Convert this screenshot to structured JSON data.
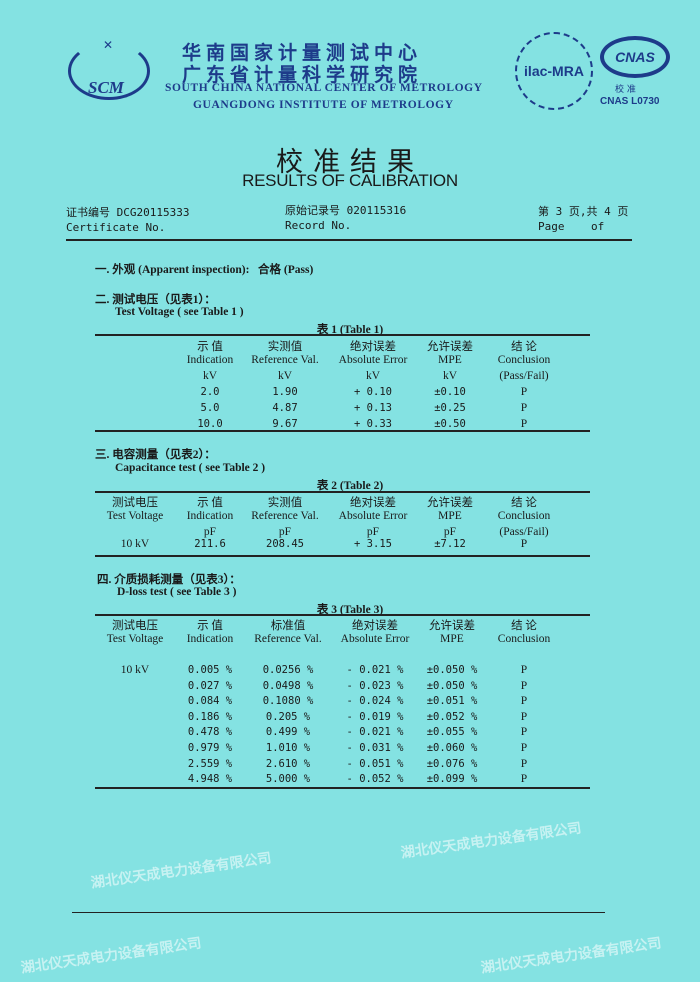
{
  "header": {
    "logo_scm": "SCM",
    "org_cn_1": "华南国家计量测试中心",
    "org_cn_2": "广东省计量科学研究院",
    "org_en_1": "SOUTH CHINA NATIONAL CENTER OF METROLOGY",
    "org_en_2": "GUANGDONG INSTITUTE OF METROLOGY",
    "ilac_logo": "ilac-MRA",
    "cnas_logo": "CNAS",
    "cnas_sub": "校 准",
    "cnas_no": "CNAS L0730"
  },
  "title": {
    "cn": "校准结果",
    "en": "RESULTS OF CALIBRATION"
  },
  "meta": {
    "cert_label_cn": "证书编号",
    "cert_no": "DCG20115333",
    "cert_label_en": "Certificate No.",
    "record_label_cn": "原始记录号",
    "record_no": "020115316",
    "record_label_en": "Record No.",
    "page_cn": "第 3 页,共 4 页",
    "page_en": "Page    of"
  },
  "section1": {
    "label": "一. 外观 (Apparent inspection):",
    "result": "合格 (Pass)"
  },
  "section2": {
    "title_cn": "二. 测试电压（见表1）：",
    "title_en": "Test Voltage ( see Table 1 )",
    "table_title": "表 1 (Table 1)",
    "headers": [
      [
        "示 值",
        "Indication",
        "kV"
      ],
      [
        "实测值",
        "Reference Val.",
        "kV"
      ],
      [
        "绝对误差",
        "Absolute Error",
        "kV"
      ],
      [
        "允许误差",
        "MPE",
        "kV"
      ],
      [
        "结 论",
        "Conclusion",
        "(Pass/Fail)"
      ]
    ],
    "rows": [
      [
        "2.0",
        "1.90",
        "+ 0.10",
        "±0.10",
        "P"
      ],
      [
        "5.0",
        "4.87",
        "+ 0.13",
        "±0.25",
        "P"
      ],
      [
        "10.0",
        "9.67",
        "+ 0.33",
        "±0.50",
        "P"
      ]
    ]
  },
  "section3": {
    "title_cn": "三. 电容测量（见表2）：",
    "title_en": "Capacitance test ( see Table 2 )",
    "table_title": "表 2 (Table 2)",
    "headers": [
      [
        "测试电压",
        "Test Voltage",
        ""
      ],
      [
        "示 值",
        "Indication",
        "pF"
      ],
      [
        "实测值",
        "Reference Val.",
        "pF"
      ],
      [
        "绝对误差",
        "Absolute Error",
        "pF"
      ],
      [
        "允许误差",
        "MPE",
        "pF"
      ],
      [
        "结 论",
        "Conclusion",
        "(Pass/Fail)"
      ]
    ],
    "rows": [
      [
        "10 kV",
        "211.6",
        "208.45",
        "+ 3.15",
        "±7.12",
        "P"
      ]
    ]
  },
  "section4": {
    "title_cn": "四. 介质损耗测量（见表3）：",
    "title_en": "D-loss test  ( see Table 3 )",
    "table_title": "表 3 (Table 3)",
    "headers": [
      [
        "测试电压",
        "Test Voltage"
      ],
      [
        "示 值",
        "Indication"
      ],
      [
        "标准值",
        "Reference Val."
      ],
      [
        "绝对误差",
        "Absolute Error"
      ],
      [
        "允许误差",
        "MPE"
      ],
      [
        "结 论",
        "Conclusion"
      ]
    ],
    "voltage": "10 kV",
    "rows": [
      [
        "0.005 %",
        "0.0256 %",
        "- 0.021 %",
        "±0.050 %",
        "P"
      ],
      [
        "0.027 %",
        "0.0498 %",
        "- 0.023 %",
        "±0.050 %",
        "P"
      ],
      [
        "0.084 %",
        "0.1080 %",
        "- 0.024 %",
        "±0.051 %",
        "P"
      ],
      [
        "0.186 %",
        "0.205 %",
        "- 0.019 %",
        "±0.052 %",
        "P"
      ],
      [
        "0.478 %",
        "0.499 %",
        "- 0.021 %",
        "±0.055 %",
        "P"
      ],
      [
        "0.979 %",
        "1.010 %",
        "- 0.031 %",
        "±0.060 %",
        "P"
      ],
      [
        "2.559 %",
        "2.610 %",
        "- 0.051 %",
        "±0.076 %",
        "P"
      ],
      [
        "4.948 %",
        "5.000 %",
        "- 0.052 %",
        "±0.099 %",
        "P"
      ]
    ]
  },
  "watermark": "湖北仪天成电力设备有限公司"
}
